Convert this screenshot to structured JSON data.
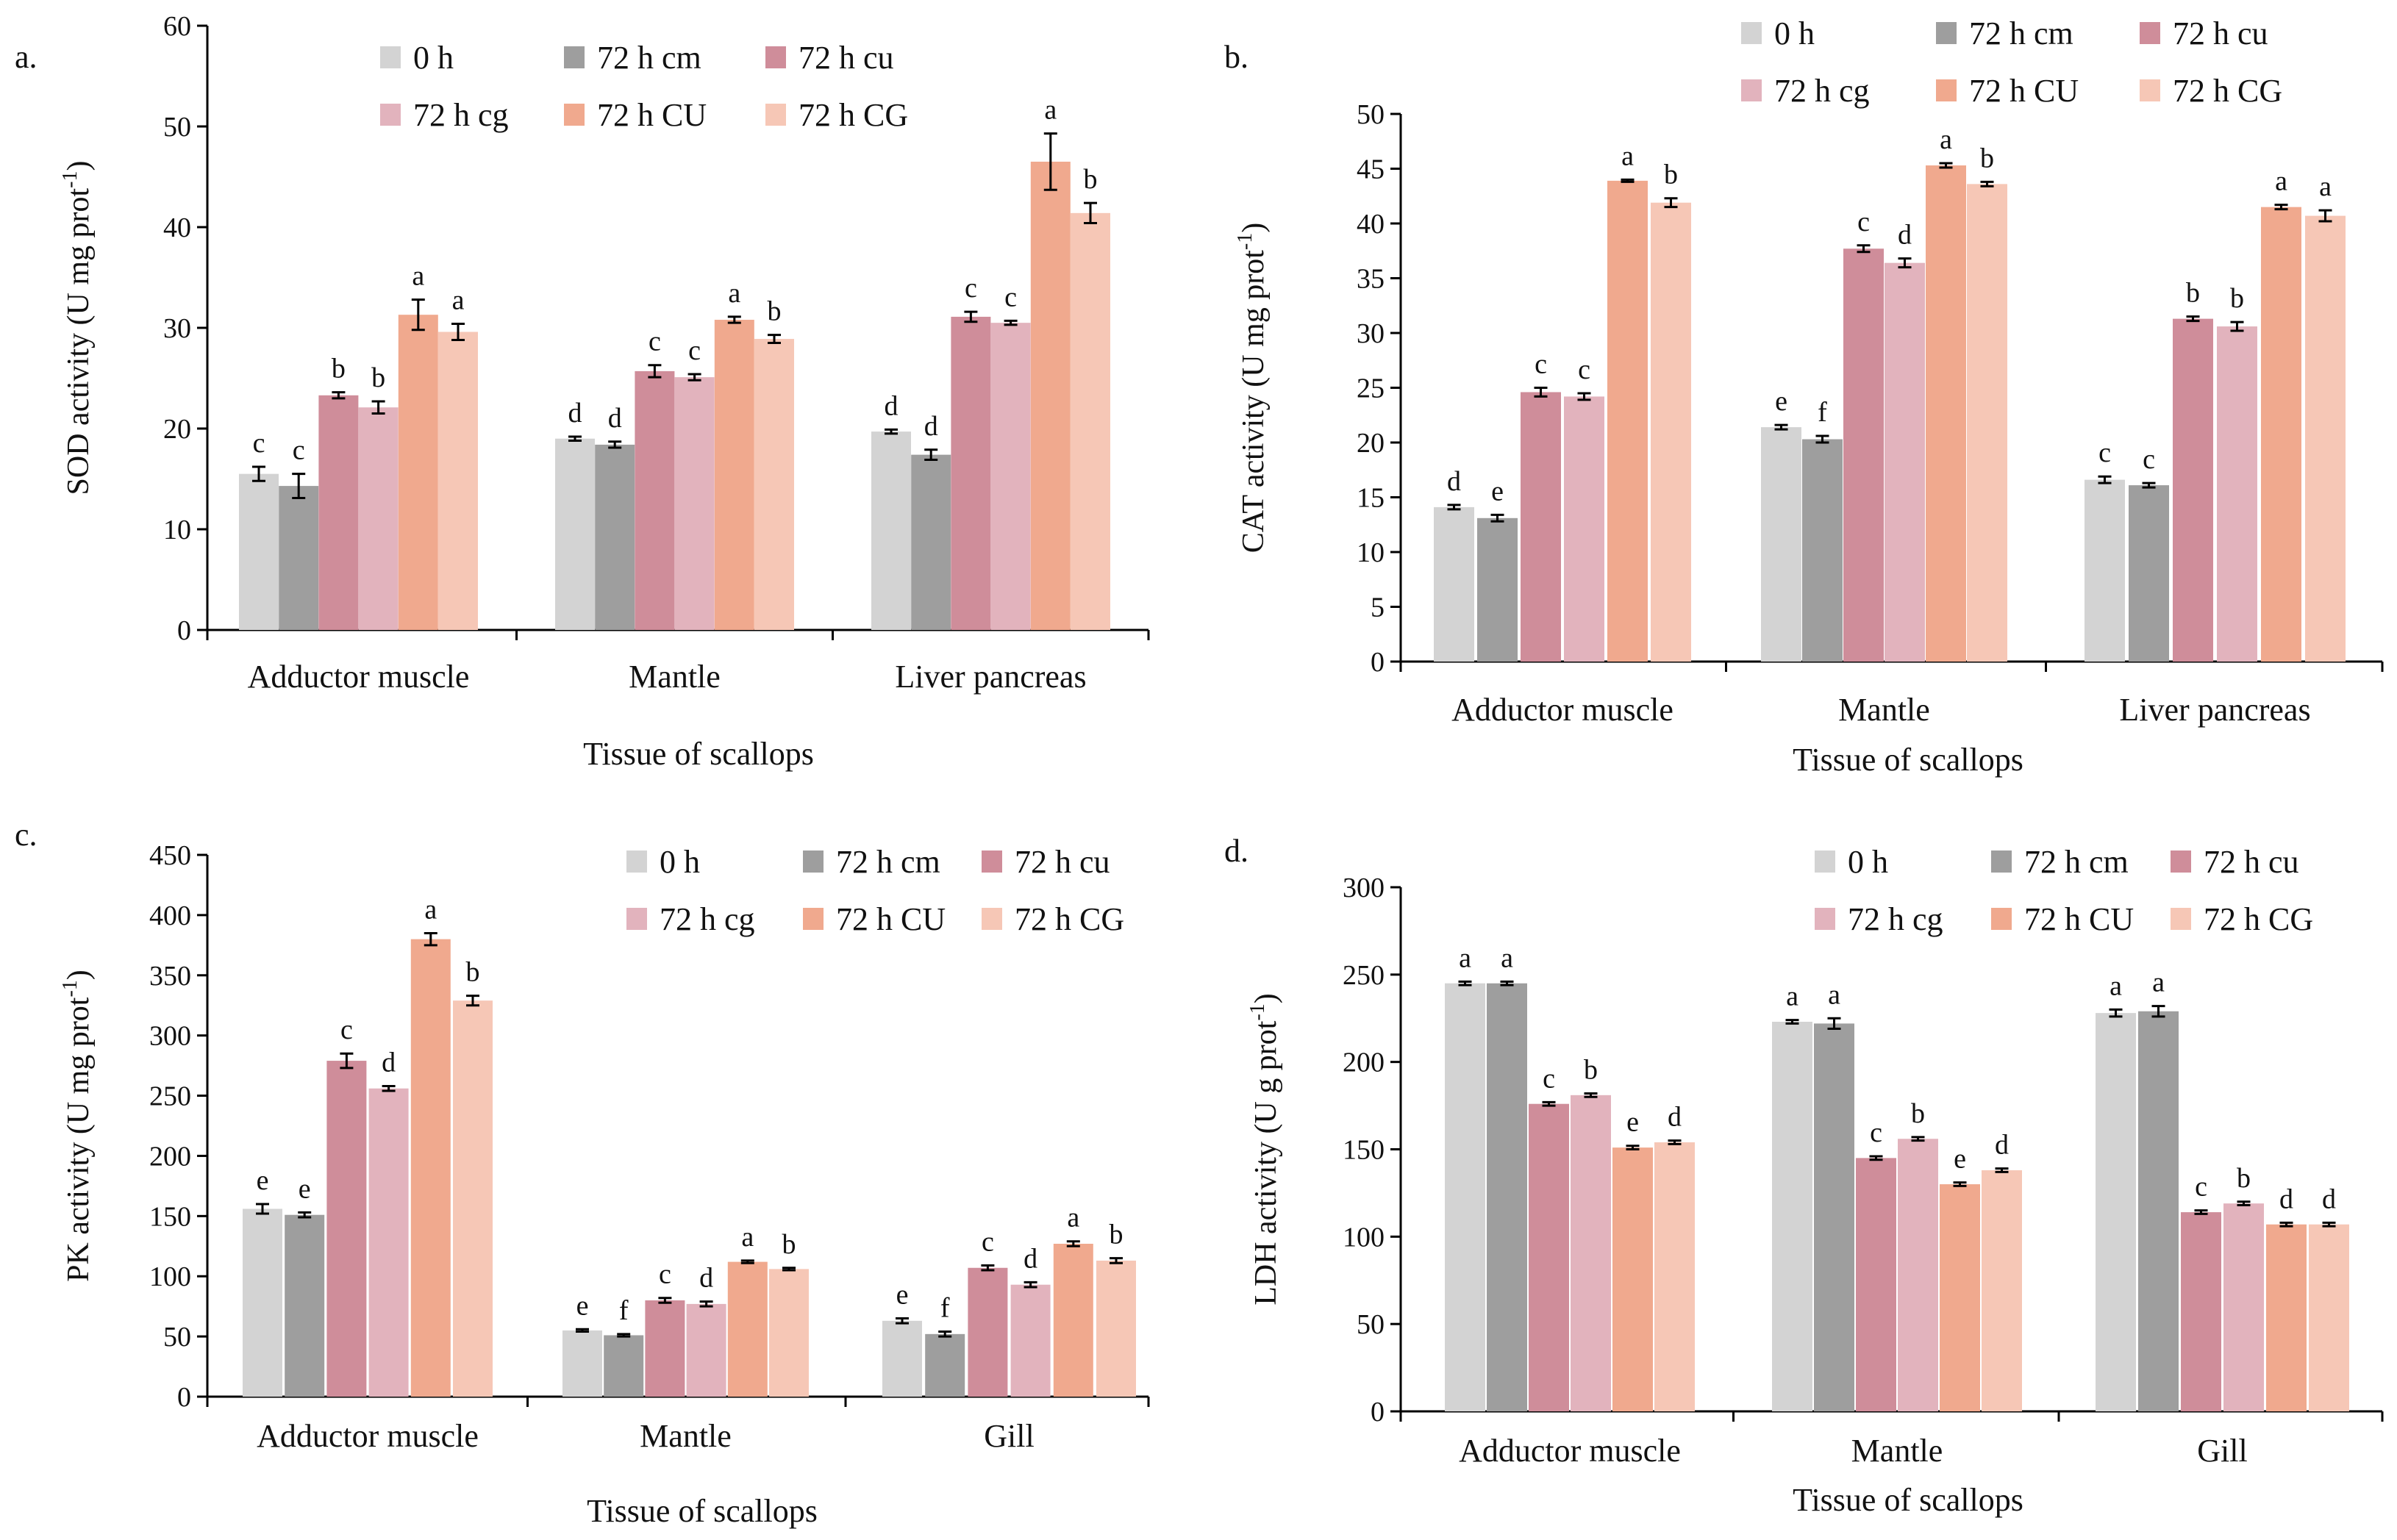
{
  "legend": [
    "0 h",
    "72 h cm",
    "72 h cu",
    "72 h cg",
    "72 h CU",
    "72 h CG"
  ],
  "colors": [
    "#d3d3d3",
    "#9e9e9e",
    "#cf8d9a",
    "#e2b3bd",
    "#f0a98e",
    "#f6c7b6"
  ],
  "chart_data": [
    {
      "panel": "a.",
      "type": "bar",
      "title": "",
      "xlabel": "Tissue of scallops",
      "ylabel": "SOD activity (U mg prot",
      "ylabel_sup": "-1",
      "ylabel_end": ")",
      "ylim": [
        0,
        60
      ],
      "yticks": [
        0,
        10,
        20,
        30,
        40,
        50,
        60
      ],
      "tick_labels": [
        "0",
        "10",
        "20",
        "30",
        "40",
        "50",
        "60"
      ],
      "categories": [
        "Adductor muscle",
        "Mantle",
        "Liver pancreas"
      ],
      "series": [
        {
          "name": "0 h",
          "values": [
            15.5,
            19.0,
            19.7
          ],
          "errors": [
            0.7,
            0.2,
            0.2
          ],
          "letters": [
            "c",
            "d",
            "d"
          ]
        },
        {
          "name": "72 h cm",
          "values": [
            14.3,
            18.4,
            17.4
          ],
          "errors": [
            1.2,
            0.3,
            0.5
          ],
          "letters": [
            "c",
            "d",
            "d"
          ]
        },
        {
          "name": "72 h cu",
          "values": [
            23.3,
            25.7,
            31.1
          ],
          "errors": [
            0.3,
            0.6,
            0.5
          ],
          "letters": [
            "b",
            "c",
            "c"
          ]
        },
        {
          "name": "72 h cg",
          "values": [
            22.1,
            25.1,
            30.5
          ],
          "errors": [
            0.6,
            0.3,
            0.2
          ],
          "letters": [
            "b",
            "c",
            "c"
          ]
        },
        {
          "name": "72 h CU",
          "values": [
            31.3,
            30.8,
            46.5
          ],
          "errors": [
            1.5,
            0.3,
            2.8
          ],
          "letters": [
            "a",
            "a",
            "a"
          ]
        },
        {
          "name": "72 h CG",
          "values": [
            29.6,
            28.9,
            41.4
          ],
          "errors": [
            0.8,
            0.4,
            1.0
          ],
          "letters": [
            "a",
            "b",
            "b"
          ]
        }
      ]
    },
    {
      "panel": "b.",
      "type": "bar",
      "title": "",
      "xlabel": "Tissue of scallops",
      "ylabel": "CAT activity (U mg prot",
      "ylabel_sup": "-1",
      "ylabel_end": ")",
      "ylim": [
        0,
        50
      ],
      "yticks": [
        0,
        5,
        10,
        15,
        20,
        25,
        30,
        35,
        40,
        45,
        50
      ],
      "tick_labels": [
        "0",
        "5",
        "10",
        "15",
        "20",
        "25",
        "30",
        "35",
        "40",
        "45",
        "50"
      ],
      "categories": [
        "Adductor muscle",
        "Mantle",
        "Liver pancreas"
      ],
      "series": [
        {
          "name": "0 h",
          "values": [
            14.1,
            21.4,
            16.6
          ],
          "errors": [
            0.2,
            0.2,
            0.3
          ],
          "letters": [
            "d",
            "e",
            "c"
          ]
        },
        {
          "name": "72 h cm",
          "values": [
            13.1,
            20.3,
            16.1
          ],
          "errors": [
            0.3,
            0.3,
            0.2
          ],
          "letters": [
            "e",
            "f",
            "c"
          ]
        },
        {
          "name": "72 h cu",
          "values": [
            24.6,
            37.7,
            31.3
          ],
          "errors": [
            0.4,
            0.3,
            0.2
          ],
          "letters": [
            "c",
            "c",
            "b"
          ]
        },
        {
          "name": "72 h cg",
          "values": [
            24.2,
            36.4,
            30.6
          ],
          "errors": [
            0.3,
            0.4,
            0.4
          ],
          "letters": [
            "c",
            "d",
            "b"
          ]
        },
        {
          "name": "72 h CU",
          "values": [
            43.9,
            45.3,
            41.5
          ],
          "errors": [
            0.1,
            0.2,
            0.2
          ],
          "letters": [
            "a",
            "a",
            "a"
          ]
        },
        {
          "name": "72 h CG",
          "values": [
            41.9,
            43.6,
            40.7
          ],
          "errors": [
            0.4,
            0.2,
            0.5
          ],
          "letters": [
            "b",
            "b",
            "a"
          ]
        }
      ]
    },
    {
      "panel": "c.",
      "type": "bar",
      "title": "",
      "xlabel": "Tissue of scallops",
      "ylabel": "PK activity (U mg prot",
      "ylabel_sup": "-1",
      "ylabel_end": ")",
      "ylim": [
        0,
        450
      ],
      "yticks": [
        0,
        50,
        100,
        150,
        200,
        250,
        300,
        350,
        400,
        450
      ],
      "tick_labels": [
        "0",
        "50",
        "100",
        "150",
        "200",
        "250",
        "300",
        "350",
        "400",
        "450"
      ],
      "categories": [
        "Adductor muscle",
        "Mantle",
        "Gill"
      ],
      "series": [
        {
          "name": "0 h",
          "values": [
            156,
            55,
            63
          ],
          "errors": [
            4,
            1,
            2
          ],
          "letters": [
            "e",
            "e",
            "e"
          ]
        },
        {
          "name": "72 h cm",
          "values": [
            151,
            51,
            52
          ],
          "errors": [
            2,
            1,
            2
          ],
          "letters": [
            "e",
            "f",
            "f"
          ]
        },
        {
          "name": "72 h cu",
          "values": [
            279,
            80,
            107
          ],
          "errors": [
            6,
            2,
            2
          ],
          "letters": [
            "c",
            "c",
            "c"
          ]
        },
        {
          "name": "72 h cg",
          "values": [
            256,
            77,
            93
          ],
          "errors": [
            2,
            2,
            2
          ],
          "letters": [
            "d",
            "d",
            "d"
          ]
        },
        {
          "name": "72 h CU",
          "values": [
            380,
            112,
            127
          ],
          "errors": [
            5,
            1,
            2
          ],
          "letters": [
            "a",
            "a",
            "a"
          ]
        },
        {
          "name": "72 h CG",
          "values": [
            329,
            106,
            113
          ],
          "errors": [
            4,
            1,
            2
          ],
          "letters": [
            "b",
            "b",
            "b"
          ]
        }
      ]
    },
    {
      "panel": "d.",
      "type": "bar",
      "title": "",
      "xlabel": "Tissue of scallops",
      "ylabel": "LDH activity (U g prot",
      "ylabel_sup": "-1",
      "ylabel_end": ")",
      "ylim": [
        0,
        300
      ],
      "yticks": [
        0,
        50,
        100,
        150,
        200,
        250,
        300
      ],
      "tick_labels": [
        "0",
        "50",
        "100",
        "150",
        "200",
        "250",
        "300"
      ],
      "categories": [
        "Adductor muscle",
        "Mantle",
        "Gill"
      ],
      "series": [
        {
          "name": "0 h",
          "values": [
            245,
            223,
            228
          ],
          "errors": [
            1,
            1,
            2
          ],
          "letters": [
            "a",
            "a",
            "a"
          ]
        },
        {
          "name": "72 h cm",
          "values": [
            245,
            222,
            229
          ],
          "errors": [
            1,
            3,
            3
          ],
          "letters": [
            "a",
            "a",
            "a"
          ]
        },
        {
          "name": "72 h cu",
          "values": [
            176,
            145,
            114
          ],
          "errors": [
            1,
            1,
            1
          ],
          "letters": [
            "c",
            "c",
            "c"
          ]
        },
        {
          "name": "72 h cg",
          "values": [
            181,
            156,
            119
          ],
          "errors": [
            1,
            1,
            1
          ],
          "letters": [
            "b",
            "b",
            "b"
          ]
        },
        {
          "name": "72 h CU",
          "values": [
            151,
            130,
            107
          ],
          "errors": [
            1,
            1,
            1
          ],
          "letters": [
            "e",
            "e",
            "d"
          ]
        },
        {
          "name": "72 h CG",
          "values": [
            154,
            138,
            107
          ],
          "errors": [
            1,
            1,
            1
          ],
          "letters": [
            "d",
            "d",
            "d"
          ]
        }
      ]
    }
  ]
}
